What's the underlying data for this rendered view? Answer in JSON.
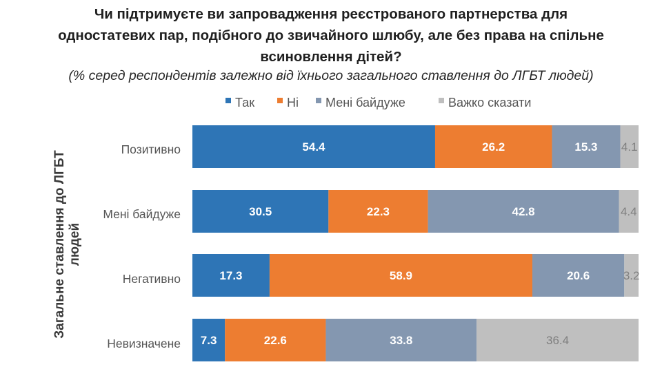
{
  "chart_data": {
    "type": "bar",
    "orientation": "horizontal",
    "stacked": true,
    "title": [
      "Чи підтримуєте ви запровадження реєстрованого партнерства для",
      "одностатевих пар, подібного до звичайного шлюбу, але без права на спільне",
      "всиновлення дітей?"
    ],
    "subtitle": "(% серед респондентів залежно від їхнього загального ставлення до ЛГБТ людей)",
    "ylabel": [
      "Загальне ставлення до ЛГБТ",
      "людей"
    ],
    "xlabel": "",
    "xlim": [
      0,
      100
    ],
    "grid": false,
    "legend_position": "top",
    "categories": [
      "Позитивно",
      "Мені байдуже",
      "Негативно",
      "Невизначене"
    ],
    "series": [
      {
        "name": "Так",
        "color": "#2e75b6",
        "label_color": "#ffffff",
        "label_bold": true,
        "values": [
          54.4,
          30.5,
          17.3,
          7.3
        ]
      },
      {
        "name": "Ні",
        "color": "#ed7d31",
        "label_color": "#ffffff",
        "label_bold": true,
        "values": [
          26.2,
          22.3,
          58.9,
          22.6
        ]
      },
      {
        "name": "Мені байдуже",
        "color": "#8497b0",
        "label_color": "#ffffff",
        "label_bold": true,
        "values": [
          15.3,
          42.8,
          20.6,
          33.8
        ]
      },
      {
        "name": "Важко сказати",
        "color": "#bfbfbf",
        "label_color": "#7f7f7f",
        "label_bold": false,
        "values": [
          4.1,
          4.4,
          3.2,
          36.4
        ]
      }
    ]
  }
}
